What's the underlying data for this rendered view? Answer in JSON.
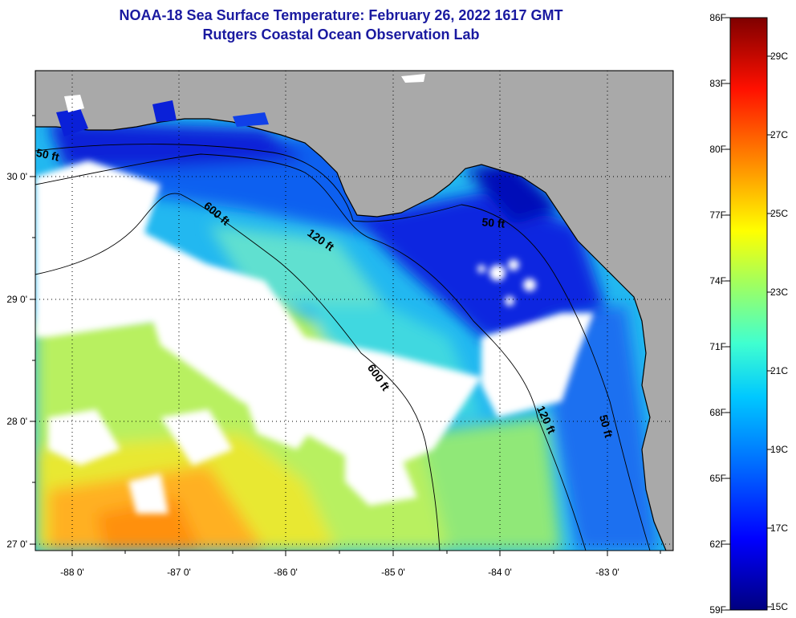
{
  "title": "NOAA-18 Sea Surface Temperature:  February 26, 2022 1617 GMT",
  "subtitle": "Rutgers Coastal Ocean Observation Lab",
  "colors": {
    "land": "#a9a9a9",
    "cloud": "#ffffff",
    "title": "#1a1aa0"
  },
  "map": {
    "lon_ticks": [
      "-88 0'",
      "-87 0'",
      "-86 0'",
      "-85 0'",
      "-84 0'",
      "-83 0'"
    ],
    "lat_ticks": [
      "30 0'",
      "29 0'",
      "28 0'",
      "27 0'"
    ],
    "contours": [
      "50 ft",
      "600 ft",
      "120 ft",
      "50 ft",
      "600 ft",
      "120 ft",
      "50 ft"
    ]
  },
  "colorbar": {
    "fahrenheit": [
      "86F",
      "83F",
      "80F",
      "77F",
      "74F",
      "71F",
      "68F",
      "65F",
      "62F",
      "59F"
    ],
    "celsius": [
      "29C",
      "27C",
      "25C",
      "23C",
      "21C",
      "19C",
      "17C",
      "15C"
    ]
  }
}
